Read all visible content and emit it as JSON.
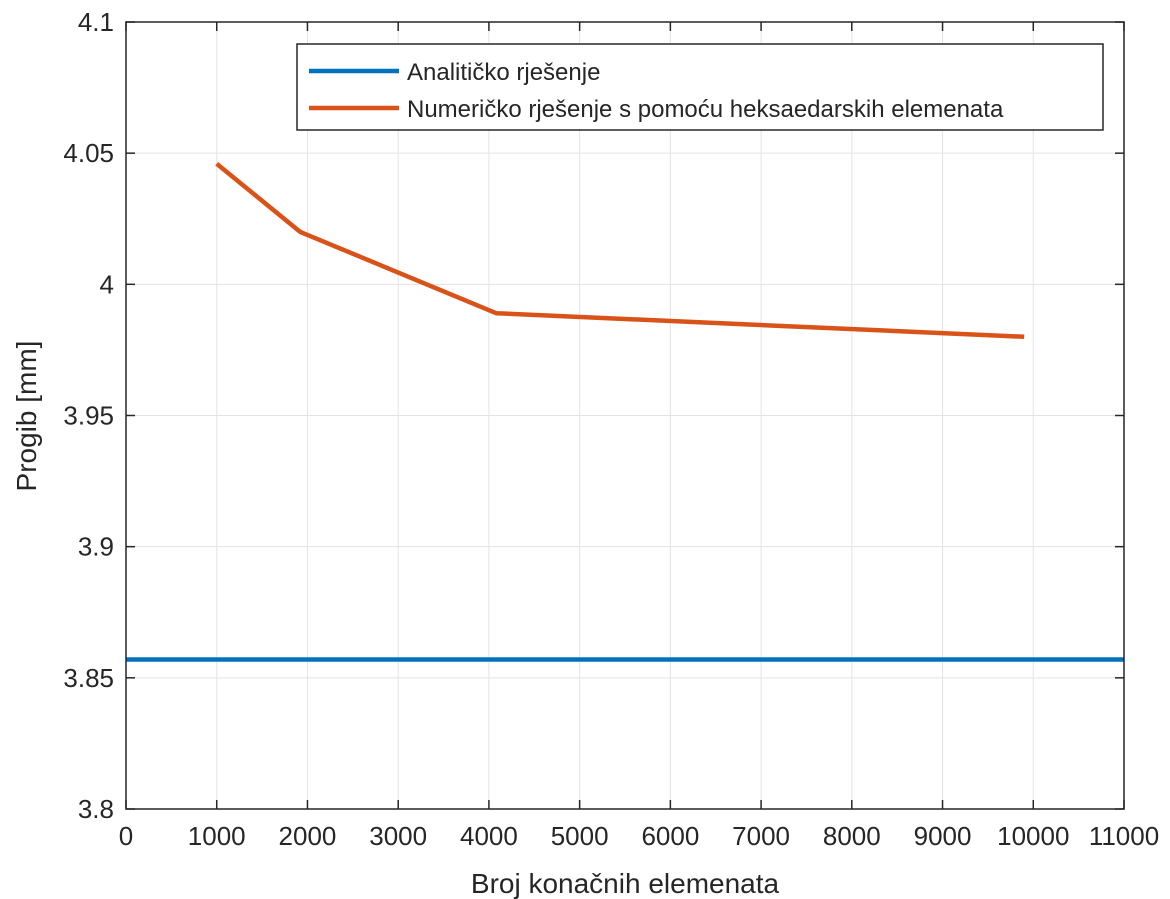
{
  "chart_data": {
    "type": "line",
    "title": "",
    "xlabel": "Broj konačnih elemenata",
    "ylabel": "Progib [mm]",
    "xlim": [
      0,
      11000
    ],
    "ylim": [
      3.8,
      4.1
    ],
    "xticks": [
      0,
      1000,
      2000,
      3000,
      4000,
      5000,
      6000,
      7000,
      8000,
      9000,
      10000,
      11000
    ],
    "yticks": [
      3.8,
      3.85,
      3.9,
      3.95,
      4.0,
      4.05,
      4.1
    ],
    "xtick_labels": [
      "0",
      "1000",
      "2000",
      "3000",
      "4000",
      "5000",
      "6000",
      "7000",
      "8000",
      "9000",
      "10000",
      "11000"
    ],
    "ytick_labels": [
      "3.8",
      "3.85",
      "3.9",
      "3.95",
      "4",
      "4.05",
      "4.1"
    ],
    "grid": true,
    "legend_position": "top-right",
    "series": [
      {
        "name": "Analitičko rješenje",
        "color": "#0072BD",
        "x": [
          0,
          11000
        ],
        "y": [
          3.857,
          3.857
        ]
      },
      {
        "name": "Numeričko rješenje s pomoću heksaedarskih elemenata",
        "color": "#D95319",
        "x": [
          1000,
          1920,
          4080,
          9900
        ],
        "y": [
          4.046,
          4.02,
          3.989,
          3.98
        ]
      }
    ]
  }
}
